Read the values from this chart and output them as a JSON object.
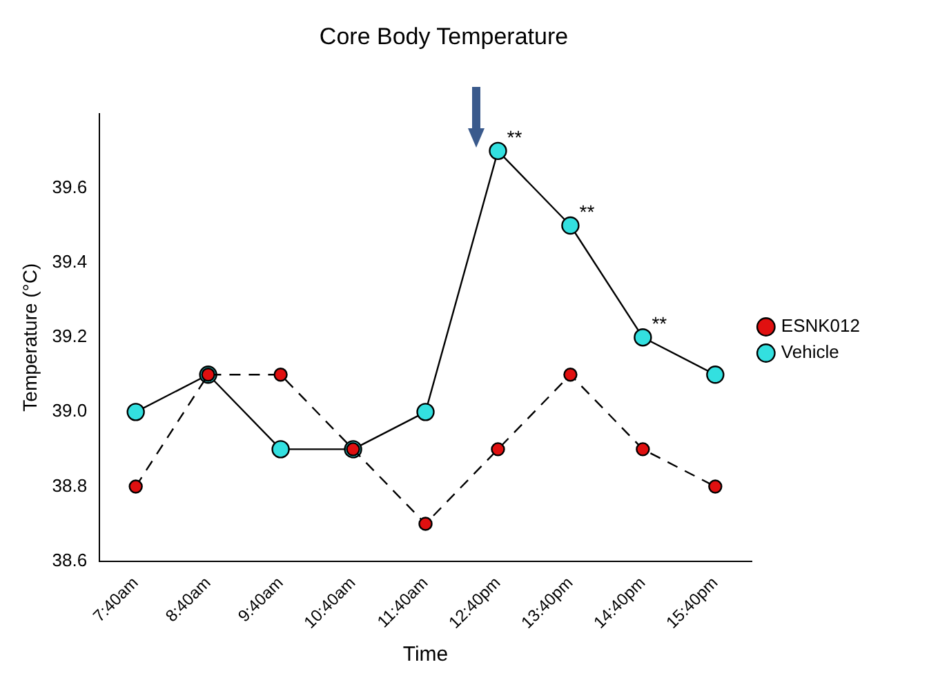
{
  "chart_data": {
    "type": "line",
    "title": "Core Body Temperature",
    "xlabel": "Time",
    "ylabel": "Temperature (°C)",
    "categories": [
      "7:40am",
      "8:40am",
      "9:40am",
      "10:40am",
      "11:40am",
      "12:40pm",
      "13:40pm",
      "14:40pm",
      "15:40pm"
    ],
    "series": [
      {
        "name": "Vehicle",
        "color": "#33e0e0",
        "line_style": "solid",
        "values": [
          39.0,
          39.1,
          38.9,
          38.9,
          39.0,
          39.7,
          39.5,
          39.2,
          39.1
        ]
      },
      {
        "name": "ESNK012",
        "color": "#e01010",
        "line_style": "dashed",
        "values": [
          38.8,
          39.1,
          39.1,
          38.9,
          38.7,
          38.9,
          39.1,
          38.9,
          38.8
        ]
      }
    ],
    "ylim": [
      38.6,
      39.8
    ],
    "yticks": [
      {
        "value": 38.6,
        "label": "38.6"
      },
      {
        "value": 38.8,
        "label": "38.8"
      },
      {
        "value": 39.0,
        "label": "39.0"
      },
      {
        "value": 39.2,
        "label": "39.2"
      },
      {
        "value": 39.4,
        "label": "39.4"
      },
      {
        "value": 39.6,
        "label": "39.6"
      }
    ],
    "grid": false,
    "legend": "right",
    "marker": "circle",
    "annotations": [
      {
        "text": "**",
        "x": "12:40pm",
        "y": 39.7
      },
      {
        "text": "**",
        "x": "13:40pm",
        "y": 39.5
      },
      {
        "text": "**",
        "x": "14:40pm",
        "y": 39.2
      }
    ]
  }
}
